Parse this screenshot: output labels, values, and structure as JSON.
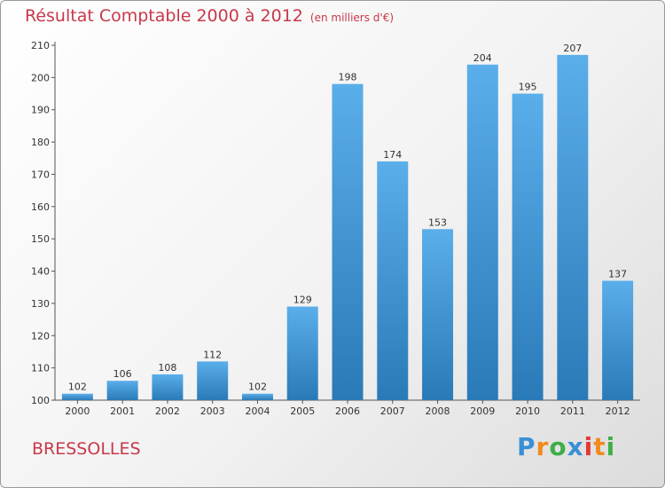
{
  "chart_data": {
    "type": "bar",
    "title": "Résultat Comptable 2000 à 2012",
    "subtitle": "(en milliers d'€)",
    "categories": [
      "2000",
      "2001",
      "2002",
      "2003",
      "2004",
      "2005",
      "2006",
      "2007",
      "2008",
      "2009",
      "2010",
      "2011",
      "2012"
    ],
    "values": [
      102,
      106,
      108,
      112,
      102,
      129,
      198,
      174,
      153,
      204,
      195,
      207,
      137
    ],
    "ylim": [
      100,
      210
    ],
    "yticks": [
      100,
      110,
      120,
      130,
      140,
      150,
      160,
      170,
      180,
      190,
      200,
      210
    ],
    "xlabel": "",
    "ylabel": "",
    "grid": false,
    "colors": {
      "bar_light": "#5aaeea",
      "bar_dark": "#2a7ab8",
      "axis": "#555555",
      "label": "#333333"
    }
  },
  "footer": {
    "town": "BRESSOLLES",
    "logo_letters": [
      "P",
      "r",
      "o",
      "x",
      "i",
      "t",
      "i"
    ],
    "logo_colors": [
      "#3a8fd6",
      "#f28a1e",
      "#3fae49",
      "#3a8fd6",
      "#e53935",
      "#f28a1e",
      "#3fae49"
    ]
  }
}
